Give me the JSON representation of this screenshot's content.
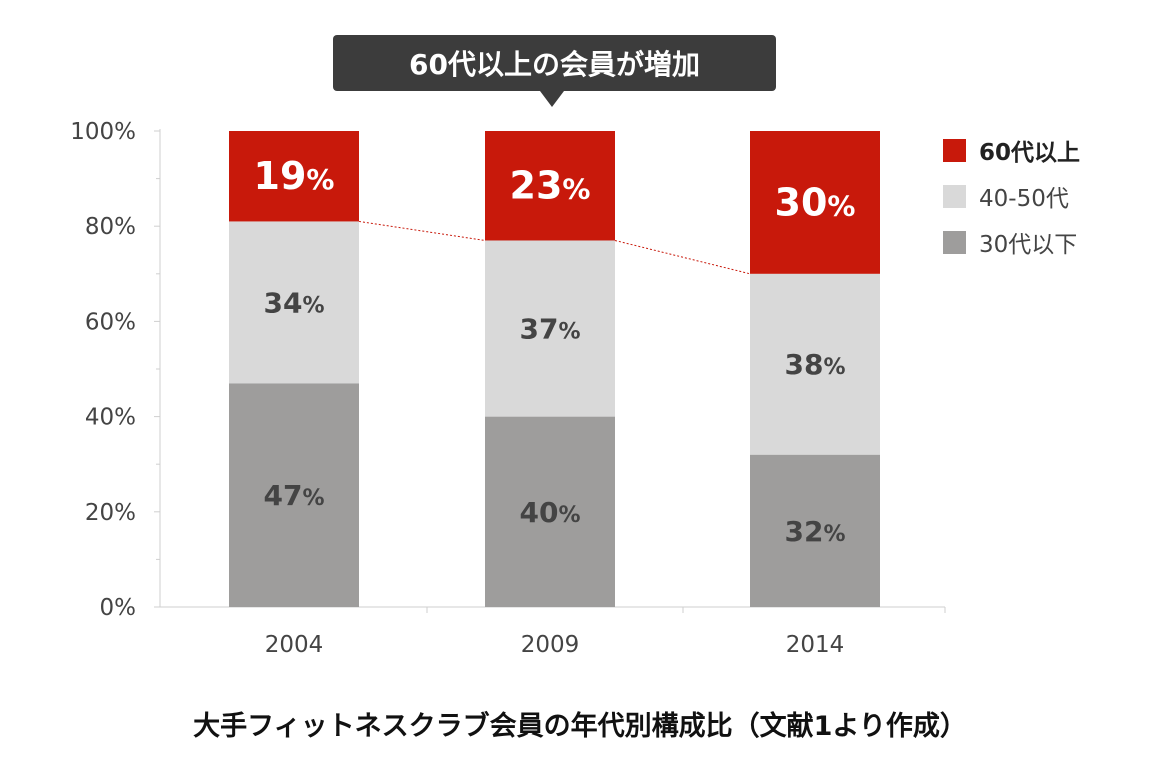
{
  "callout": {
    "text": "60代以上の会員が増加"
  },
  "legend": [
    {
      "label": "60代以上",
      "color": "#c8190b"
    },
    {
      "label": "40-50代",
      "color": "#d9d9d9"
    },
    {
      "label": "30代以下",
      "color": "#9e9d9c"
    }
  ],
  "caption": "大手フィットネスクラブ会員の年代別構成比（文献1より作成）",
  "chart_data": {
    "type": "bar",
    "stacked": true,
    "categories": [
      "2004",
      "2009",
      "2014"
    ],
    "series": [
      {
        "name": "30代以下",
        "values": [
          47,
          40,
          32
        ],
        "labels": [
          "47%",
          "40%",
          "32%"
        ],
        "color": "#9e9d9c"
      },
      {
        "name": "40-50代",
        "values": [
          34,
          37,
          38
        ],
        "labels": [
          "34%",
          "37%",
          "38%"
        ],
        "color": "#d9d9d9"
      },
      {
        "name": "60代以上",
        "values": [
          19,
          23,
          30
        ],
        "labels": [
          "19%",
          "23%",
          "30%"
        ],
        "color": "#c8190b"
      }
    ],
    "yticks": [
      "0%",
      "20%",
      "40%",
      "60%",
      "80%",
      "100%"
    ],
    "ylim": [
      0,
      100
    ],
    "legend_position": "right",
    "trend_line": "dotted red line connecting tops of 40-50代 segments",
    "grid": false
  }
}
